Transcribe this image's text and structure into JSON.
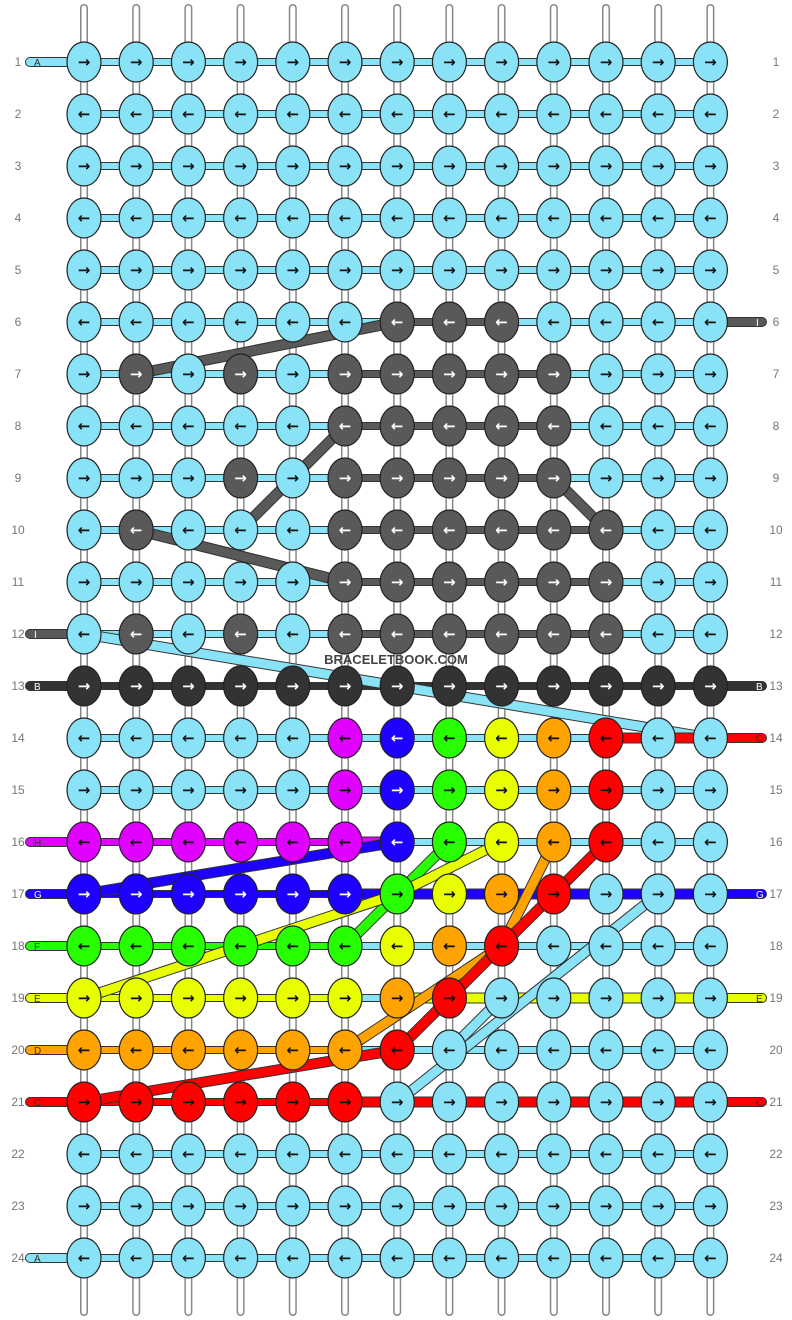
{
  "pattern": {
    "watermark": "BRACELETBOOK.COM",
    "rows": 24,
    "knot_columns": 13,
    "colors": {
      "A": "#8ae2f6",
      "B": "#333333",
      "C": "#fe0000",
      "D": "#ffa300",
      "E": "#e8ff00",
      "F": "#28ff00",
      "G": "#1d00ff",
      "H": "#df00ff",
      "I": "#595959"
    },
    "strings_left": [
      "A",
      "I",
      "B",
      "H",
      "G",
      "F",
      "E",
      "D",
      "C",
      "A"
    ],
    "left_labels": [
      {
        "row": 1,
        "color": "A",
        "label": "A"
      },
      {
        "row": 12,
        "color": "I",
        "label": "I"
      },
      {
        "row": 13,
        "color": "B",
        "label": "B"
      },
      {
        "row": 16,
        "color": "H",
        "label": "H"
      },
      {
        "row": 17,
        "color": "G",
        "label": "G"
      },
      {
        "row": 18,
        "color": "F",
        "label": "F"
      },
      {
        "row": 19,
        "color": "E",
        "label": "E"
      },
      {
        "row": 20,
        "color": "D",
        "label": "D"
      },
      {
        "row": 21,
        "color": "C",
        "label": "C"
      },
      {
        "row": 24,
        "color": "A",
        "label": "A"
      }
    ],
    "right_labels": [
      {
        "row": 6,
        "color": "I",
        "label": "I"
      },
      {
        "row": 13,
        "color": "B",
        "label": "B"
      },
      {
        "row": 14,
        "color": "C",
        "label": "C"
      },
      {
        "row": 17,
        "color": "G",
        "label": "G"
      },
      {
        "row": 19,
        "color": "E",
        "label": "E"
      },
      {
        "row": 21,
        "color": "C",
        "label": "C"
      }
    ],
    "row_numbers": [
      "1",
      "2",
      "3",
      "4",
      "5",
      "6",
      "7",
      "8",
      "9",
      "10",
      "11",
      "12",
      "13",
      "14",
      "15",
      "16",
      "17",
      "18",
      "19",
      "20",
      "21",
      "22",
      "23",
      "24"
    ],
    "knots": [
      "AAAAAAAAAAAAA",
      "AAAAAAAAAAAAA",
      "AAAAAAAAAAAAA",
      "AAAAAAAAAAAAA",
      "AAAAAAAAAAAAA",
      "AAAAAAIIIAAAA",
      "AIAIAIIIIIAAA",
      "AAAAAIIIIIAAA",
      "AAAIAIIIIIAAA",
      "AIAAAIIIIIIAA",
      "AAAAAIIIIIIAA",
      "AIAIAIIIIIIAA",
      "BBBBBBBBBBBBB",
      "AAAAAHGFEDCAA",
      "AAAAAHGFEDCAA",
      "HHHHHHGFEDCAA",
      "GGGGGGFEDCAAA",
      "FFFFFFEDCAAAA",
      "EEEEEEDCAAAAA",
      "DDDDDDCAAAAAA",
      "CCCCCCAAAAAAA",
      "AAAAAAAAAAAAA",
      "AAAAAAAAAAAAA",
      "AAAAAAAAAAAAA"
    ],
    "directions": [
      "RRRRRRRRRRRRR",
      "LLLLLLLLLLLLL",
      "RRRRRRRRRRRRR",
      "LLLLLLLLLLLLL",
      "RRRRRRRRRRRRR",
      "LLLLLLLLLLLLL",
      "RRRRRRRRRRRRR",
      "LLLLLLLLLLLLL",
      "RRRRRRRRRRRRR",
      "LLLLLLLLLLLLL",
      "RRRRRRRRRRRRR",
      "LLLLLLLLLLLLL",
      "RRRRRRRRRRRRR",
      "LLLLLLLLLLLLL",
      "RRRRRRRRRRRRR",
      "LLLLLLLLLLLLL",
      "RRRRRRRRRRRRR",
      "LLLLLLLLLLLLL",
      "RRRRRRRRRRRRR",
      "LLLLLLLLLLLLL",
      "RRRRRRRRRRRRR",
      "LLLLLLLLLLLLL",
      "RRRRRRRRRRRRR",
      "LLLLLLLLLLLLL"
    ],
    "arrow_glyphs": {
      "R": "→",
      "L": "←"
    },
    "dark_colors": [
      "B",
      "I",
      "G"
    ]
  }
}
